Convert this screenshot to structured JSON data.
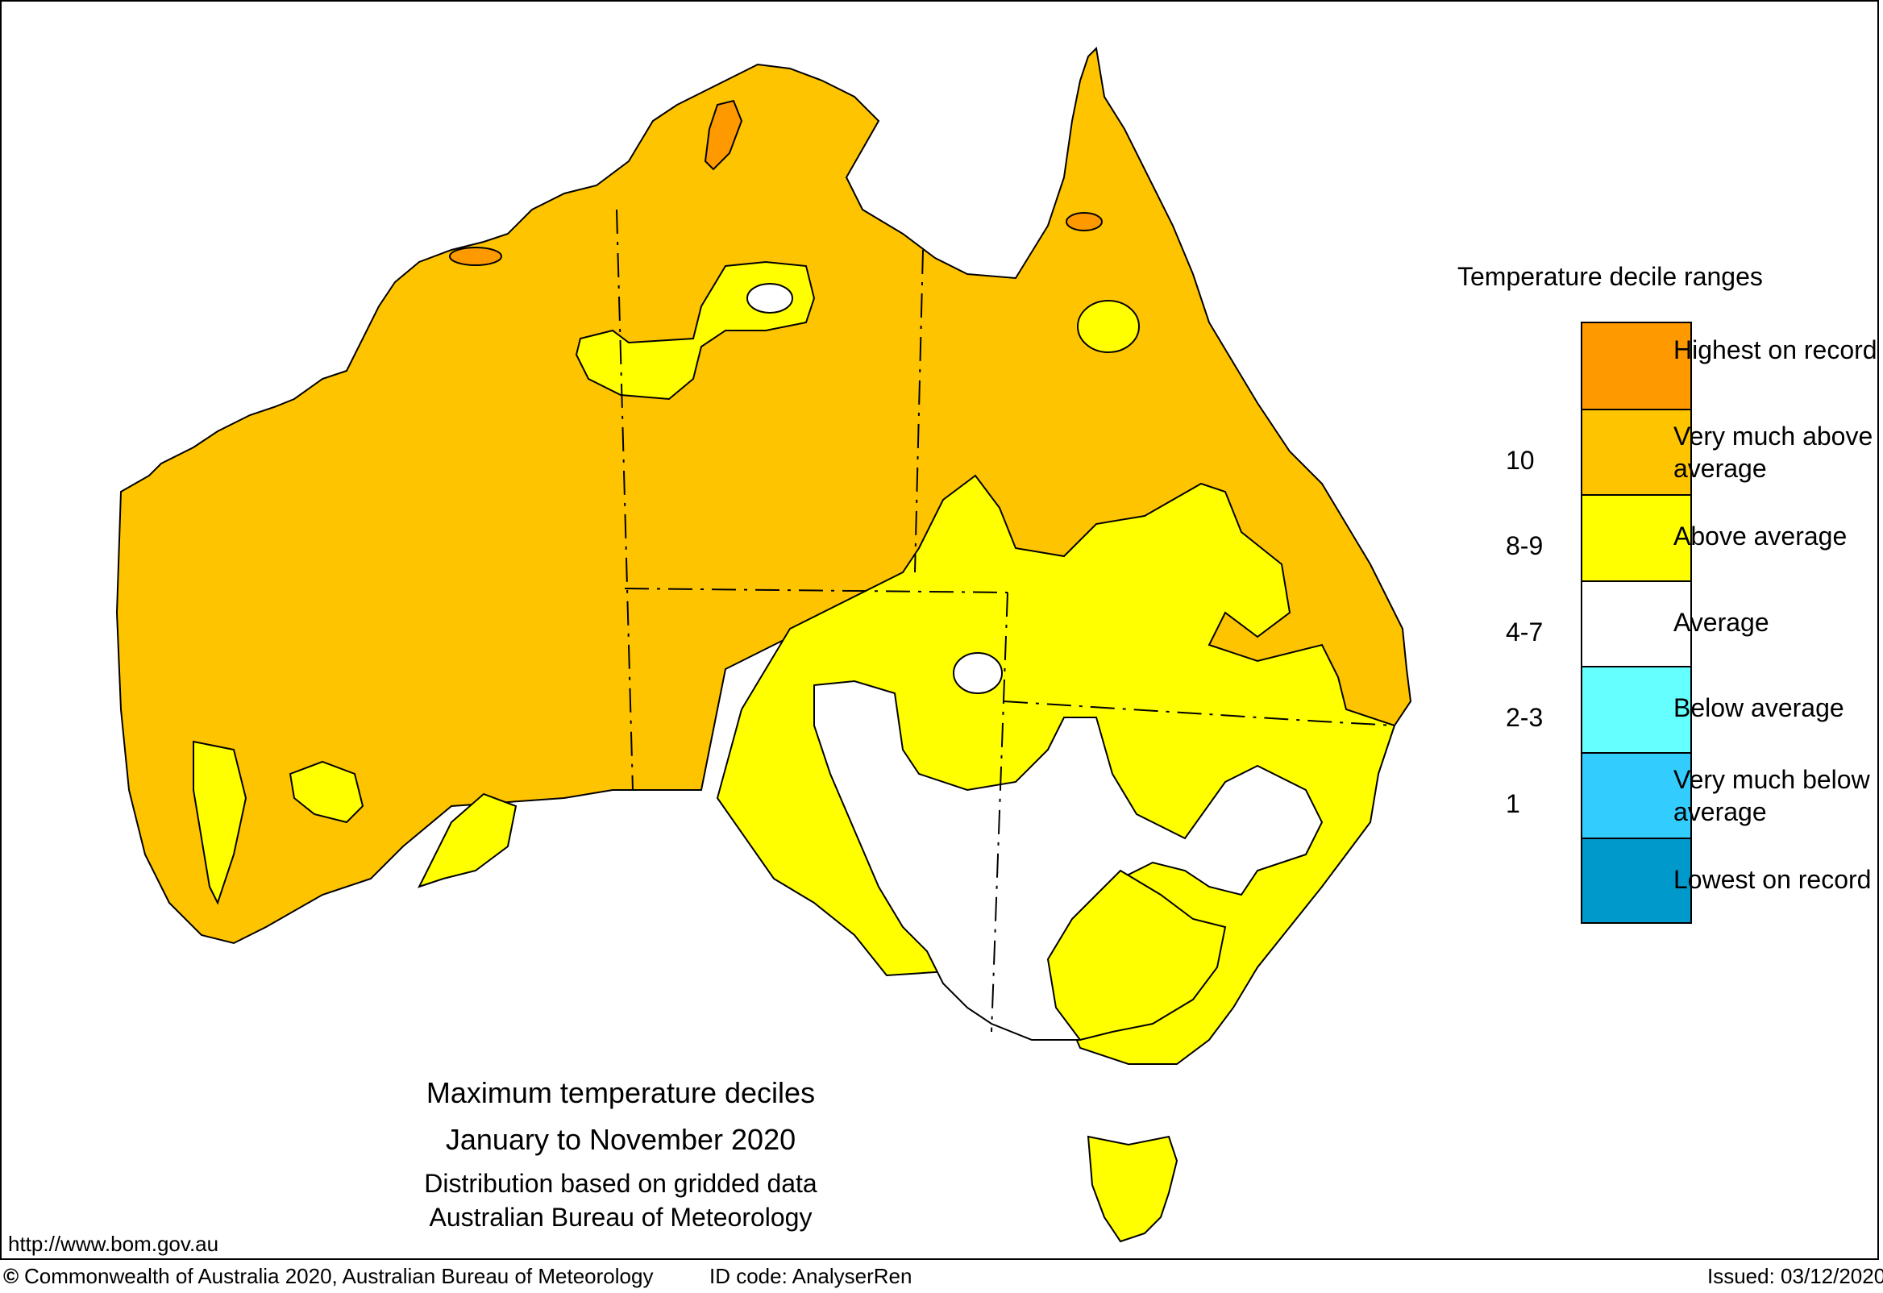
{
  "map": {
    "title": "Maximum temperature deciles",
    "period": "January to November 2020",
    "method": "Distribution based on gridded data",
    "agency": "Australian Bureau of Meteorology",
    "url": "http://www.bom.gov.au"
  },
  "legend": {
    "title": "Temperature decile ranges",
    "items": [
      {
        "label": "Highest on record",
        "code": "",
        "color": "#ff9900"
      },
      {
        "label": "Very much above average",
        "code": "10",
        "color": "#ffc400"
      },
      {
        "label": "Above average",
        "code": "8-9",
        "color": "#ffff00"
      },
      {
        "label": "Average",
        "code": "4-7",
        "color": "#ffffff"
      },
      {
        "label": "Below average",
        "code": "2-3",
        "color": "#66ffff"
      },
      {
        "label": "Very much below average",
        "code": "1",
        "color": "#33ccff"
      },
      {
        "label": "Lowest on record",
        "code": "",
        "color": "#0099cc"
      }
    ]
  },
  "footer": {
    "copyright_symbol": "©",
    "copyright": "Commonwealth of Australia 2020, Australian Bureau of Meteorology",
    "id_code": "ID code: AnalyserRen",
    "issued": "Issued: 03/12/2020"
  }
}
